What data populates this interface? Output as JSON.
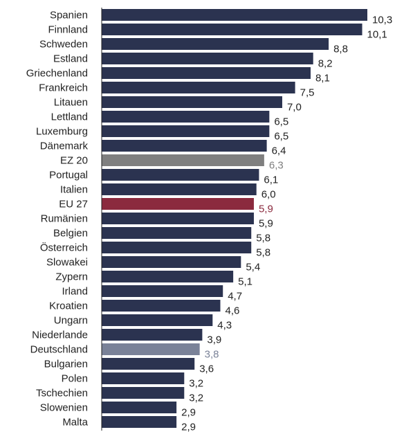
{
  "chart_data": {
    "type": "bar",
    "orientation": "horizontal",
    "categories": [
      "Spanien",
      "Finnland",
      "Schweden",
      "Estland",
      "Griechenland",
      "Frankreich",
      "Litauen",
      "Lettland",
      "Luxemburg",
      "Dänemark",
      "EZ 20",
      "Portugal",
      "Italien",
      "EU 27",
      "Rumänien",
      "Belgien",
      "Österreich",
      "Slowakei",
      "Zypern",
      "Irland",
      "Kroatien",
      "Ungarn",
      "Niederlande",
      "Deutschland",
      "Bulgarien",
      "Polen",
      "Tschechien",
      "Slowenien",
      "Malta"
    ],
    "values": [
      10.3,
      10.1,
      8.8,
      8.2,
      8.1,
      7.5,
      7.0,
      6.5,
      6.5,
      6.4,
      6.3,
      6.1,
      6.0,
      5.9,
      5.9,
      5.8,
      5.8,
      5.4,
      5.1,
      4.7,
      4.6,
      4.3,
      3.9,
      3.8,
      3.6,
      3.2,
      3.2,
      2.9,
      2.9
    ],
    "value_labels": [
      "10,3",
      "10,1",
      "8,8",
      "8,2",
      "8,1",
      "7,5",
      "7,0",
      "6,5",
      "6,5",
      "6,4",
      "6,3",
      "6,1",
      "6,0",
      "5,9",
      "5,9",
      "5,8",
      "5,8",
      "5,4",
      "5,1",
      "4,7",
      "4,6",
      "4,3",
      "3,9",
      "3,8",
      "3,6",
      "3,2",
      "3,2",
      "2,9",
      "2,9"
    ],
    "xlim": [
      0,
      10.3
    ],
    "grid": false,
    "legend": "none",
    "colors": {
      "default": "#2b3350",
      "default_label": "#222222",
      "highlights": {
        "EZ 20": {
          "bar": "#7f7f7f",
          "label": "#7f7f7f"
        },
        "EU 27": {
          "bar": "#8b2a3e",
          "label": "#8b2a3e"
        },
        "Deutschland": {
          "bar": "#7a8298",
          "label": "#7a8298"
        }
      }
    }
  }
}
